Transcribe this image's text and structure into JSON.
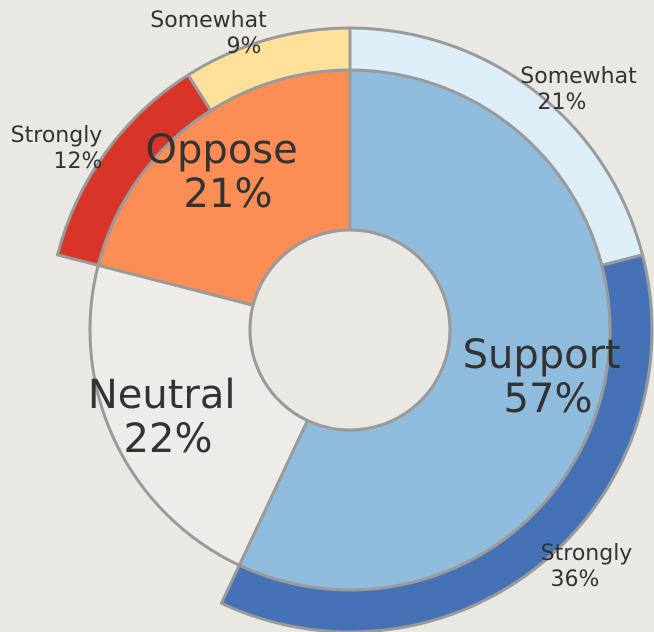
{
  "chart_data": {
    "type": "pie",
    "variant": "nested-donut",
    "inner": [
      {
        "name": "Support",
        "value": 57,
        "label": "57%",
        "color": "#8fbcdd"
      },
      {
        "name": "Neutral",
        "value": 22,
        "label": "22%",
        "color": "#edece9"
      },
      {
        "name": "Oppose",
        "value": 21,
        "label": "21%",
        "color": "#fb8d55"
      }
    ],
    "outer": [
      {
        "parent": "Support",
        "name": "Somewhat",
        "value": 21,
        "label": "21%",
        "color": "#deeef9"
      },
      {
        "parent": "Support",
        "name": "Strongly",
        "value": 36,
        "label": "36%",
        "color": "#4572b6"
      },
      {
        "parent": "Neutral",
        "name": "",
        "value": 22,
        "label": "",
        "color": "#edece9"
      },
      {
        "parent": "Oppose",
        "name": "Strongly",
        "value": 12,
        "label": "12%",
        "color": "#d83427"
      },
      {
        "parent": "Oppose",
        "name": "Somewhat",
        "value": 9,
        "label": "9%",
        "color": "#ffe19b"
      }
    ],
    "colors": {
      "background": "#e9e8e3",
      "outline": "#9a9a9a",
      "text": "#333333"
    }
  }
}
